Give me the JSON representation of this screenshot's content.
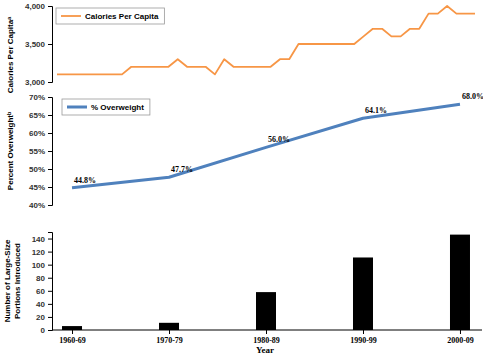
{
  "chart_data": [
    {
      "type": "line",
      "ylabel": "Calories Per Capitaᵃ",
      "legend": "upper left",
      "tick_labels": "y",
      "categories": [
        null,
        null,
        null,
        null,
        null,
        null,
        null,
        null,
        null,
        null,
        null,
        null,
        null,
        null,
        null,
        null,
        null,
        null,
        null,
        null,
        null,
        null,
        null,
        null,
        null,
        null,
        null,
        null,
        null,
        null,
        null,
        null,
        null,
        null,
        null,
        null,
        null,
        null,
        null,
        null,
        null,
        null,
        null,
        null,
        null,
        null
      ],
      "series": [
        {
          "name": "Calories Per Capita",
          "color": "#f79646",
          "values": [
            3100,
            3100,
            3100,
            3100,
            3100,
            3100,
            3100,
            3100,
            3200,
            3200,
            3200,
            3200,
            3200,
            3300,
            3200,
            3200,
            3200,
            3100,
            3300,
            3200,
            3200,
            3200,
            3200,
            3200,
            3300,
            3300,
            3500,
            3500,
            3500,
            3500,
            3500,
            3500,
            3500,
            3600,
            3700,
            3700,
            3600,
            3600,
            3700,
            3700,
            3900,
            3900,
            4000,
            3900,
            3900,
            3900
          ]
        }
      ],
      "ylim": [
        3000,
        4000
      ],
      "yticks": [
        {
          "value": 3000,
          "label": "3,000"
        },
        {
          "value": 3500,
          "label": "3,500"
        },
        {
          "value": 4000,
          "label": "4,000"
        }
      ]
    },
    {
      "type": "line",
      "ylabel": "Percent Overweightᵇ",
      "legend": "upper left",
      "tick_labels": "y",
      "data_labels": true,
      "categories": [
        null,
        null,
        null,
        null,
        null
      ],
      "series": [
        {
          "name": "% Overweight",
          "color": "#4f81bd",
          "values": [
            44.8,
            47.7,
            56.0,
            64.1,
            68.0
          ],
          "value_labels": [
            "44.8%",
            "47.7%",
            "56.0%",
            "64.1%",
            "68.0%"
          ]
        }
      ],
      "ylim": [
        40,
        70
      ],
      "yticks": [
        {
          "value": 40,
          "label": "40%"
        },
        {
          "value": 45,
          "label": "45%"
        },
        {
          "value": 50,
          "label": "50%"
        },
        {
          "value": 55,
          "label": "55%"
        },
        {
          "value": 60,
          "label": "60%"
        },
        {
          "value": 65,
          "label": "65%"
        },
        {
          "value": 70,
          "label": "70%"
        }
      ]
    },
    {
      "type": "bar",
      "xlabel": "Year",
      "ylabel": [
        "Number of Large-Size",
        "Portions Introduced"
      ],
      "categories": [
        "1960-69",
        "1970-79",
        "1980-89",
        "1990-99",
        "2000-09"
      ],
      "values": [
        6,
        11,
        58,
        111,
        146
      ],
      "color": "#000000",
      "ylim": [
        0,
        150
      ],
      "yticks": [
        0,
        20,
        40,
        60,
        80,
        100,
        120,
        140
      ]
    }
  ]
}
